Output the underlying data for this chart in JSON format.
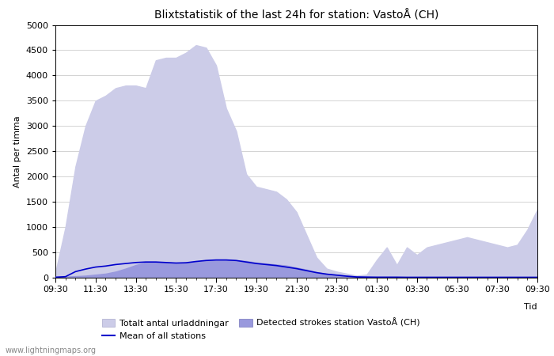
{
  "title": "Blixtstatistik of the last 24h for station: VastoÅ (CH)",
  "ylabel": "Antal per timma",
  "xlabel": "Tid",
  "watermark": "www.lightningmaps.org",
  "ylim": [
    0,
    5000
  ],
  "yticks": [
    0,
    500,
    1000,
    1500,
    2000,
    2500,
    3000,
    3500,
    4000,
    4500,
    5000
  ],
  "xtick_labels": [
    "09:30",
    "11:30",
    "13:30",
    "15:30",
    "17:30",
    "19:30",
    "21:30",
    "23:30",
    "01:30",
    "03:30",
    "05:30",
    "07:30",
    "09:30"
  ],
  "legend": {
    "total_label": "Totalt antal urladdningar",
    "detected_label": "Detected strokes station VastoÅ (CH)",
    "mean_label": "Mean of all stations",
    "total_color": "#cccce8",
    "detected_color": "#9999dd",
    "mean_color": "#0000cc"
  },
  "background_color": "#ffffff",
  "grid_color": "#cccccc",
  "title_fontsize": 10,
  "axis_fontsize": 8,
  "tick_fontsize": 8,
  "total_values": [
    100,
    1000,
    2200,
    3000,
    3500,
    3600,
    3750,
    3800,
    3800,
    3750,
    4300,
    4350,
    4350,
    4450,
    4600,
    4550,
    4200,
    3350,
    2900,
    2050,
    1800,
    1750,
    1700,
    1550,
    1300,
    850,
    400,
    180,
    120,
    80,
    40,
    60,
    350,
    600,
    250,
    600,
    450,
    600,
    650,
    700,
    750,
    800,
    750,
    700,
    650,
    600,
    650,
    950,
    1350
  ],
  "detected_values": [
    10,
    20,
    30,
    40,
    60,
    80,
    120,
    180,
    250,
    300,
    310,
    300,
    290,
    295,
    320,
    340,
    350,
    350,
    340,
    330,
    300,
    280,
    260,
    240,
    200,
    160,
    110,
    80,
    60,
    40,
    20,
    15,
    10,
    10,
    10,
    10,
    10,
    10,
    10,
    10,
    10,
    10,
    10,
    10,
    10,
    10,
    10,
    10,
    10
  ],
  "mean_values": [
    10,
    20,
    120,
    170,
    210,
    230,
    260,
    280,
    300,
    310,
    310,
    300,
    290,
    295,
    320,
    340,
    350,
    350,
    340,
    310,
    280,
    260,
    240,
    210,
    180,
    140,
    100,
    70,
    50,
    30,
    15,
    12,
    10,
    10,
    10,
    8,
    8,
    8,
    8,
    8,
    8,
    8,
    8,
    8,
    8,
    8,
    8,
    8,
    8
  ]
}
